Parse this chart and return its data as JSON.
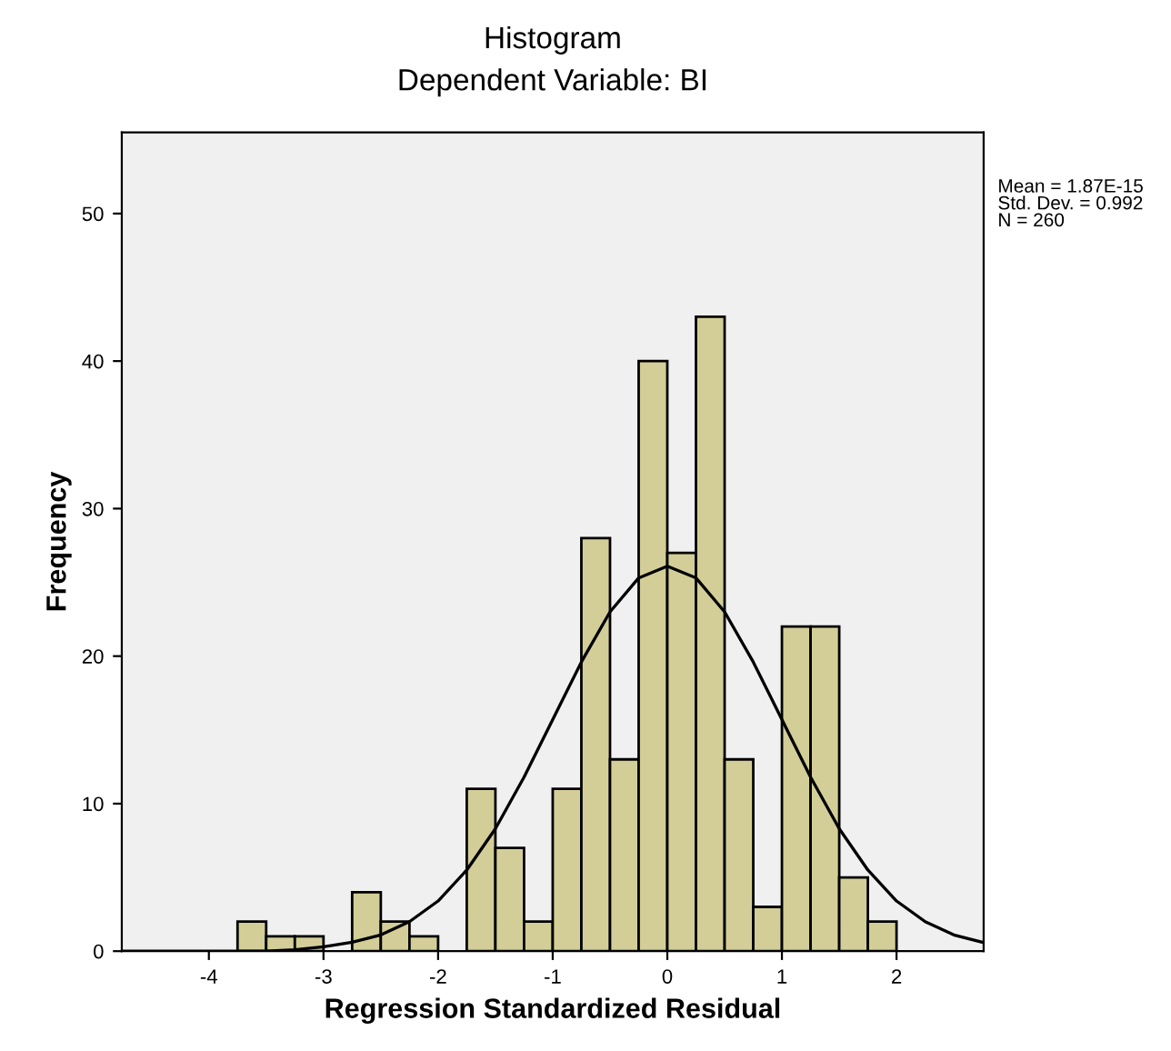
{
  "chart_data": {
    "type": "histogram",
    "title": "Histogram",
    "subtitle": "Dependent Variable: BI",
    "xlabel": "Regression Standardized Residual",
    "ylabel": "Frequency",
    "bins": [
      -3.75,
      -3.5,
      -3.25,
      -3.0,
      -2.75,
      -2.5,
      -2.25,
      -2.0,
      -1.75,
      -1.5,
      -1.25,
      -1.0,
      -0.75,
      -0.5,
      -0.25,
      0.0,
      0.25,
      0.5,
      0.75,
      1.0,
      1.25,
      1.5,
      1.75,
      2.0
    ],
    "values": [
      2,
      1,
      1,
      0,
      4,
      2,
      1,
      0,
      11,
      7,
      2,
      11,
      28,
      13,
      40,
      27,
      43,
      13,
      3,
      22,
      22,
      5,
      2
    ],
    "color": "#d3ce97",
    "series": [
      {
        "type": "line",
        "color": "#000000",
        "x": [
          -4.75,
          -4.0,
          -3.5,
          -3.25,
          -3.0,
          -2.75,
          -2.5,
          -2.25,
          -2.0,
          -1.75,
          -1.5,
          -1.25,
          -1.0,
          -0.75,
          -0.5,
          -0.25,
          0.0,
          0.25,
          0.5,
          0.75,
          1.0,
          1.25,
          1.5,
          1.75,
          2.0,
          2.25,
          2.5,
          2.75
        ],
        "values": [
          0.0,
          0.0,
          0.0,
          0.1,
          0.3,
          0.6,
          1.1,
          2.0,
          3.4,
          5.5,
          8.3,
          11.8,
          15.7,
          19.6,
          23.0,
          25.3,
          26.1,
          25.3,
          23.0,
          19.6,
          15.7,
          11.8,
          8.3,
          5.5,
          3.4,
          2.0,
          1.1,
          0.6
        ]
      }
    ],
    "annotations": [
      "Mean = 1.87E-15\nStd. Dev. = 0.992\nN = 260"
    ],
    "xlim": [
      -4.76,
      2.76
    ],
    "ylim": [
      0,
      55.5
    ],
    "xticks": [
      -4,
      -3,
      -2,
      -1,
      0,
      1,
      2
    ],
    "yticks": [
      0,
      10,
      20,
      30,
      40,
      50
    ],
    "grid": false
  }
}
